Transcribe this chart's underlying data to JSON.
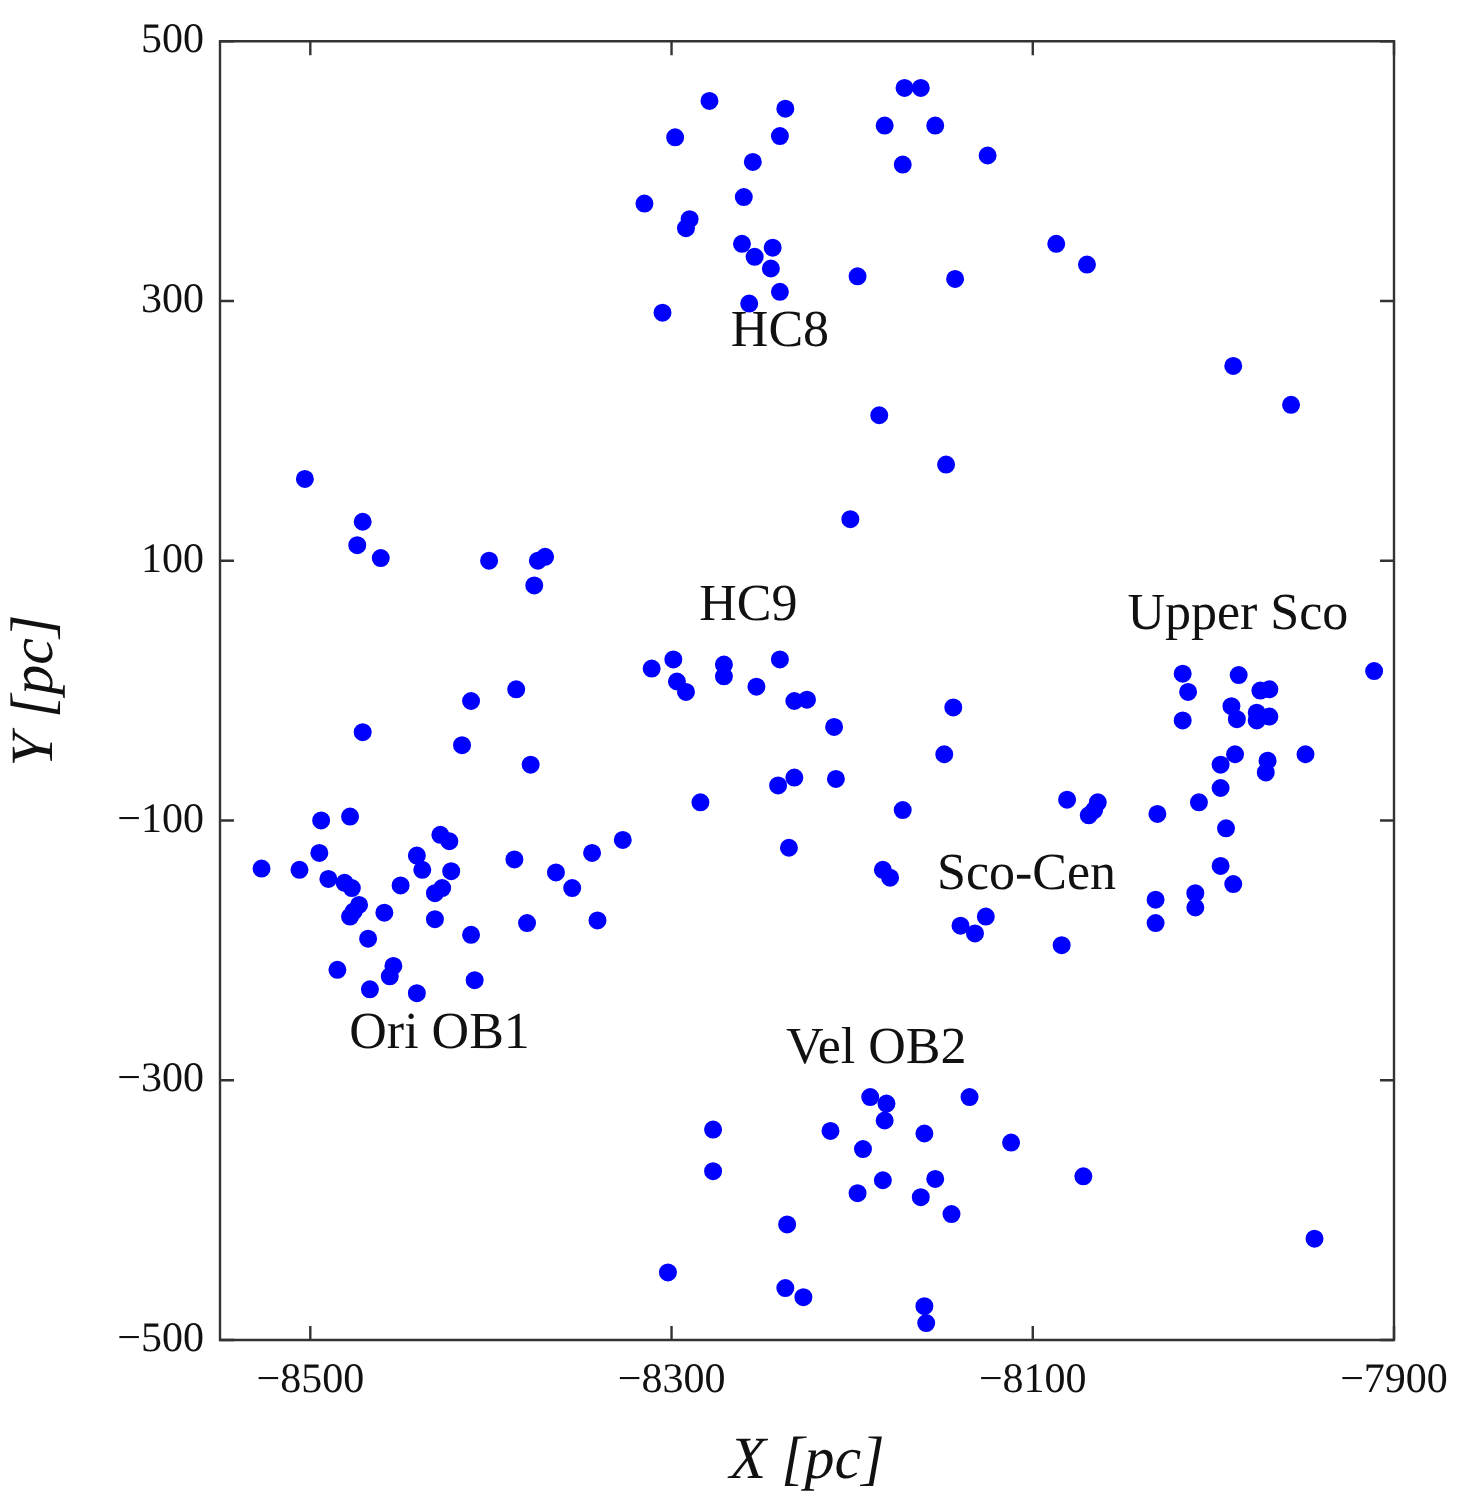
{
  "chart_data": {
    "type": "scatter",
    "xlabel": "X [pc]",
    "ylabel": "Y [pc]",
    "marker": "circle",
    "xlim": [
      -8550,
      -7900
    ],
    "ylim": [
      -500,
      500
    ],
    "xticks": [
      {
        "value": -8500,
        "label": "−8500"
      },
      {
        "value": -8300,
        "label": "−8300"
      },
      {
        "value": -8100,
        "label": "−8100"
      },
      {
        "value": -7900,
        "label": "−7900"
      }
    ],
    "yticks": [
      {
        "value": -500,
        "label": "−500"
      },
      {
        "value": -300,
        "label": "−300"
      },
      {
        "value": -100,
        "label": "−100"
      },
      100,
      300,
      500
    ],
    "annotations": [
      "HC8",
      "HC9",
      "Upper Sco",
      "Sco-Cen",
      "Ori OB1",
      "Vel OB2"
    ],
    "series": [
      {
        "color": "#0000ff",
        "x": [
          -8279,
          -8237,
          -8298,
          -8240,
          -8255,
          -8315,
          -8260,
          -8290,
          -8292,
          -8261,
          -8254,
          -8244,
          -8245,
          -8240,
          -8257,
          -8305,
          -8503,
          -8471,
          -8474,
          -8461,
          -8401,
          -8374,
          -8370,
          -8376,
          -8311,
          -8299,
          -8297,
          -8292,
          -8271,
          -8271,
          -8240,
          -8253,
          -8386,
          -8411,
          -8232,
          -8225,
          -8471,
          -8416,
          -8378,
          -8284,
          -8241,
          -8232,
          -8235,
          -8494,
          -8478,
          -8527,
          -8506,
          -8495,
          -8490,
          -8481,
          -8477,
          -8473,
          -8476,
          -8478,
          -8468,
          -8485,
          -8467,
          -8454,
          -8456,
          -8441,
          -8459,
          -8450,
          -8441,
          -8438,
          -8428,
          -8423,
          -8422,
          -8427,
          -8431,
          -8431,
          -8411,
          -8409,
          -8387,
          -8380,
          -8364,
          -8355,
          -8344,
          -8341,
          -8327,
          -8277,
          -8277,
          -8236,
          -8302,
          -8237,
          -8227,
          -8171,
          -8162,
          -8182,
          -8154,
          -8172,
          -8125,
          -8087,
          -8070,
          -8197,
          -8143,
          -7989,
          -7957,
          -8185,
          -8148,
          -8201,
          -7911,
          -8017,
          -7986,
          -7974,
          -7969,
          -8014,
          -8210,
          -8209,
          -8144,
          -8149,
          -8172,
          -8183,
          -8179,
          -8140,
          -8132,
          -8126,
          -8084,
          -8081,
          -8069,
          -8064,
          -8066,
          -8031,
          -8032,
          -8032,
          -8010,
          -8010,
          -8008,
          -7996,
          -7993,
          -7996,
          -7989,
          -7996,
          -7988,
          -7970,
          -7971,
          -7949,
          -8017,
          -7990,
          -7987,
          -7976,
          -7969,
          -7976,
          -8190,
          -8181,
          -8182,
          -8135,
          -8212,
          -8194,
          -8160,
          -8112,
          -8183,
          -8197,
          -8154,
          -8162,
          -8145,
          -8072,
          -7944,
          -8160,
          -8159
        ],
        "values": [
          454,
          448,
          426,
          427,
          407,
          375,
          380,
          363,
          356,
          344,
          334,
          341,
          325,
          307,
          298,
          291,
          163,
          130,
          112,
          102,
          100,
          100,
          103,
          81,
          17,
          24,
          7,
          -1,
          20,
          11,
          24,
          3,
          1,
          -8,
          -8,
          -7,
          -32,
          -42,
          -57,
          -86,
          -73,
          -67,
          -121,
          -100,
          -97,
          -137,
          -138,
          -125,
          -145,
          -148,
          -152,
          -165,
          -170,
          -174,
          -191,
          -215,
          -230,
          -212,
          -220,
          -233,
          -171,
          -150,
          -127,
          -138,
          -111,
          -116,
          -139,
          -152,
          -156,
          -176,
          -188,
          -223,
          -130,
          -179,
          -140,
          -152,
          -125,
          -177,
          -115,
          -338,
          -370,
          -411,
          -448,
          -460,
          -467,
          464,
          464,
          435,
          435,
          405,
          412,
          344,
          328,
          319,
          317,
          250,
          220,
          212,
          174,
          132,
          15,
          13,
          12,
          0,
          1,
          -1,
          -28,
          -68,
          -13,
          -49,
          -92,
          -138,
          -144,
          -181,
          -187,
          -174,
          -196,
          -84,
          -96,
          -86,
          -92,
          -95,
          -161,
          -179,
          -156,
          -167,
          -86,
          -75,
          -106,
          -135,
          -149,
          -57,
          -49,
          -54,
          -63,
          -49,
          -23,
          -12,
          -22,
          -17,
          -20,
          -23,
          -313,
          -318,
          -331,
          -313,
          -339,
          -353,
          -341,
          -348,
          -377,
          -387,
          -376,
          -390,
          -403,
          -374,
          -422,
          -474,
          -487
        ]
      }
    ]
  }
}
